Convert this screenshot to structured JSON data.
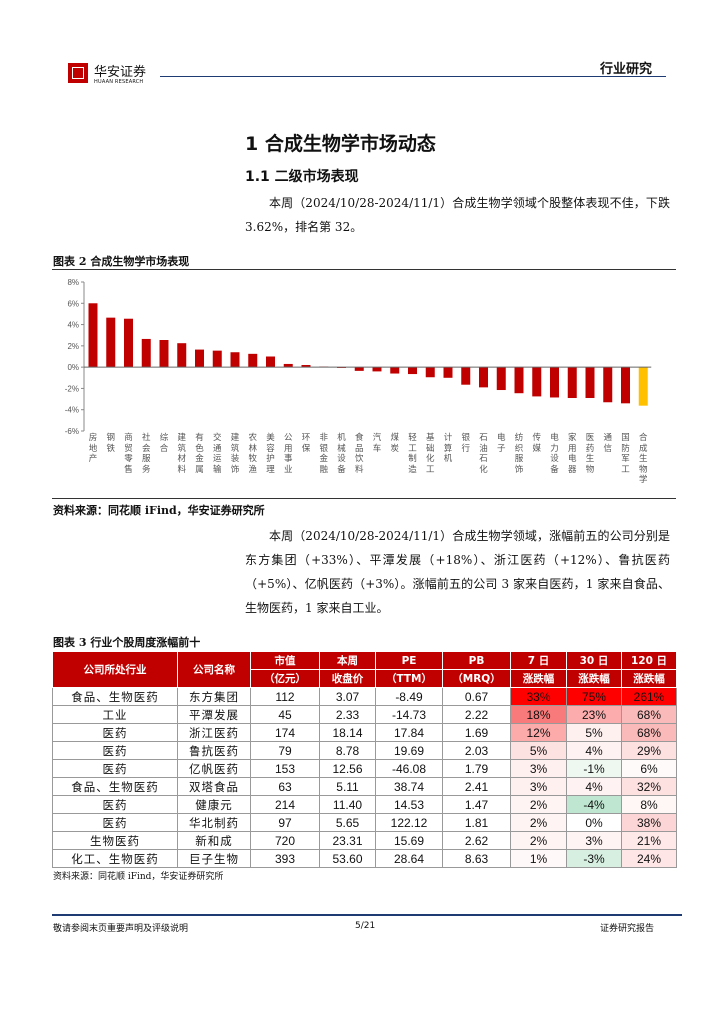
{
  "header": {
    "logo_cn": "华安证券",
    "logo_en": "HUAAN RESEARCH",
    "section": "行业研究"
  },
  "heading1": "1 合成生物学市场动态",
  "heading2": "1.1 二级市场表现",
  "para1": "本周（2024/10/28-2024/11/1）合成生物学领域个股整体表现不佳，下跌 3.62%，排名第 32。",
  "figure2": {
    "caption": "图表 2 合成生物学市场表现",
    "source": "资料来源：同花顺 iFind，华安证券研究所"
  },
  "chart_data": {
    "type": "bar",
    "title": "",
    "ylim": [
      -6,
      8
    ],
    "yticks": [
      "8%",
      "6%",
      "4%",
      "2%",
      "0%",
      "-2%",
      "-4%",
      "-6%"
    ],
    "ytick_values": [
      8,
      6,
      4,
      2,
      0,
      -2,
      -4,
      -6
    ],
    "unit": "%",
    "grid": false,
    "colors": {
      "default": "#c00000",
      "highlight": "#ffc000"
    },
    "highlight_category": "合成生物学",
    "categories": [
      "房地产",
      "钢铁",
      "商贸零售",
      "社会服务",
      "综合",
      "建筑材料",
      "有色金属",
      "交通运输",
      "建筑装饰",
      "农林牧渔",
      "美容护理",
      "公用事业",
      "环保",
      "非银金融",
      "机械设备",
      "食品饮料",
      "汽车",
      "煤炭",
      "轻工制造",
      "基础化工",
      "计算机",
      "银行",
      "石油石化",
      "电子",
      "纺织服饰",
      "传媒",
      "电力设备",
      "家用电器",
      "医药生物",
      "通信",
      "国防军工",
      "合成生物学"
    ],
    "values": [
      6.0,
      4.65,
      4.55,
      2.65,
      2.55,
      2.25,
      1.65,
      1.55,
      1.4,
      1.25,
      1.0,
      0.3,
      0.2,
      0.05,
      -0.05,
      -0.35,
      -0.4,
      -0.6,
      -0.65,
      -0.95,
      -1.0,
      -1.65,
      -1.9,
      -2.15,
      -2.45,
      -2.75,
      -2.85,
      -2.9,
      -2.9,
      -3.3,
      -3.4,
      -3.62
    ]
  },
  "para2": "本周（2024/10/28-2024/11/1）合成生物学领域，涨幅前五的公司分别是东方集团（+33%）、平潭发展（+18%）、浙江医药（+12%）、鲁抗医药（+5%）、亿帆医药（+3%）。涨幅前五的公司 3 家来自医药，1 家来自食品、生物医药，1 家来自工业。",
  "table3": {
    "caption": "图表 3 行业个股周度涨幅前十",
    "headers": [
      [
        "公司所处行业"
      ],
      [
        "公司名称"
      ],
      [
        "市值",
        "（亿元）"
      ],
      [
        "本周",
        "收盘价"
      ],
      [
        "PE",
        "（TTM）"
      ],
      [
        "PB",
        "（MRQ）"
      ],
      [
        "7 日",
        "涨跌幅"
      ],
      [
        "30 日",
        "涨跌幅"
      ],
      [
        "120 日",
        "涨跌幅"
      ]
    ],
    "rows": [
      [
        "食品、生物医药",
        "东方集团",
        "112",
        "3.07",
        "-8.49",
        "0.67",
        "33%",
        "75%",
        "261%"
      ],
      [
        "工业",
        "平潭发展",
        "45",
        "2.33",
        "-14.73",
        "2.22",
        "18%",
        "23%",
        "68%"
      ],
      [
        "医药",
        "浙江医药",
        "174",
        "18.14",
        "17.84",
        "1.69",
        "12%",
        "5%",
        "68%"
      ],
      [
        "医药",
        "鲁抗医药",
        "79",
        "8.78",
        "19.69",
        "2.03",
        "5%",
        "4%",
        "29%"
      ],
      [
        "医药",
        "亿帆医药",
        "153",
        "12.56",
        "-46.08",
        "1.79",
        "3%",
        "-1%",
        "6%"
      ],
      [
        "食品、生物医药",
        "双塔食品",
        "63",
        "5.11",
        "38.74",
        "2.41",
        "3%",
        "4%",
        "32%"
      ],
      [
        "医药",
        "健康元",
        "214",
        "11.40",
        "14.53",
        "1.47",
        "2%",
        "-4%",
        "8%"
      ],
      [
        "医药",
        "华北制药",
        "97",
        "5.65",
        "122.12",
        "1.81",
        "2%",
        "0%",
        "38%"
      ],
      [
        "生物医药",
        "新和成",
        "720",
        "23.31",
        "15.69",
        "2.62",
        "2%",
        "3%",
        "21%"
      ],
      [
        "化工、生物医药",
        "巨子生物",
        "393",
        "53.60",
        "28.64",
        "8.63",
        "1%",
        "-3%",
        "24%"
      ]
    ],
    "heat_colors": [
      [
        "#ff0000",
        "#ff0000",
        "#ff0000"
      ],
      [
        "#f87a7a",
        "#fcacac",
        "#fbbaba"
      ],
      [
        "#fcaaaa",
        "#fff0f0",
        "#fbbaba"
      ],
      [
        "#fde2e2",
        "#fff2f2",
        "#fde0e0"
      ],
      [
        "#fff0f0",
        "#eef8f1",
        "#fffafa"
      ],
      [
        "#fff0f0",
        "#fff2f2",
        "#fde0e0"
      ],
      [
        "#fff4f4",
        "#bfe6d0",
        "#fff6f6"
      ],
      [
        "#fff4f4",
        "#ffffff",
        "#fcd6d6"
      ],
      [
        "#fff4f4",
        "#fff4f4",
        "#fee8e8"
      ],
      [
        "#fff8f8",
        "#d6efe1",
        "#fee6e6"
      ]
    ],
    "source": "资料来源：同花顺 iFind，华安证券研究所"
  },
  "footer": {
    "left": "敬请参阅末页重要声明及评级说明",
    "page": "5/21",
    "right": "证券研究报告"
  }
}
